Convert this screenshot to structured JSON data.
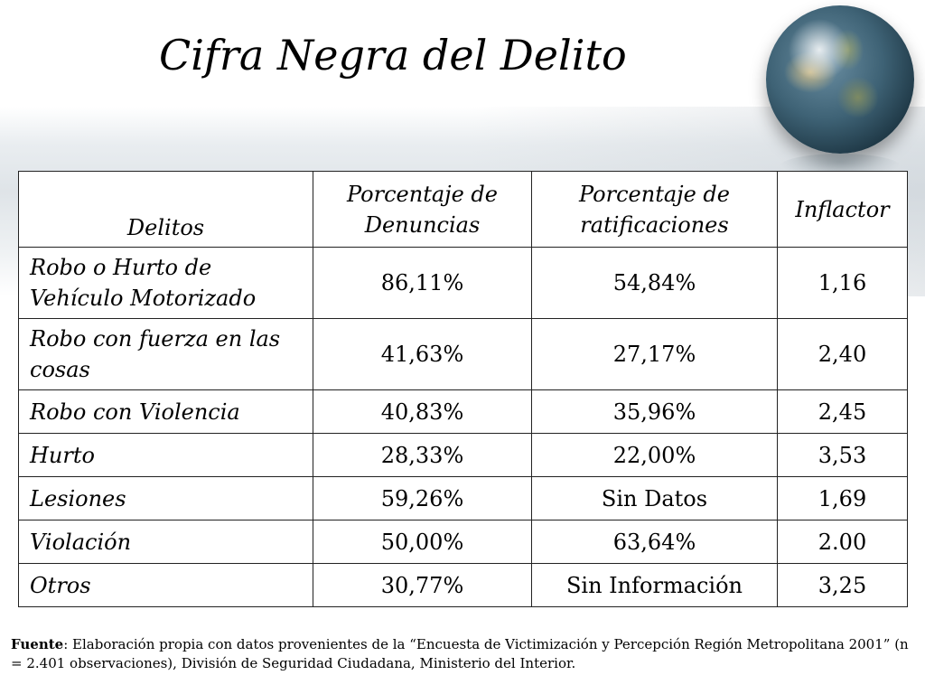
{
  "slide": {
    "title": "Cifra Negra del Delito"
  },
  "table": {
    "headers": [
      "Delitos",
      "Porcentaje de Denuncias",
      "Porcentaje de ratificaciones",
      "Inflactor"
    ],
    "rows": [
      [
        "Robo o Hurto de Vehículo Motorizado",
        "86,11%",
        "54,84%",
        "1,16"
      ],
      [
        "Robo con fuerza en las cosas",
        "41,63%",
        "27,17%",
        "2,40"
      ],
      [
        "Robo con Violencia",
        "40,83%",
        "35,96%",
        "2,45"
      ],
      [
        "Hurto",
        "28,33%",
        "22,00%",
        "3,53"
      ],
      [
        "Lesiones",
        "59,26%",
        "Sin Datos",
        "1,69"
      ],
      [
        "Violación",
        "50,00%",
        "63,64%",
        "2.00"
      ],
      [
        "Otros",
        "30,77%",
        "Sin Información",
        "3,25"
      ]
    ]
  },
  "source": {
    "label": "Fuente",
    "text": ": Elaboración propia con datos provenientes de la “Encuesta de Victimización y  Percepción Región Metropolitana 2001” (n = 2.401 observaciones), División de Seguridad Ciudadana, Ministerio del Interior."
  },
  "decor": {
    "globe_icon": "globe-icon"
  }
}
